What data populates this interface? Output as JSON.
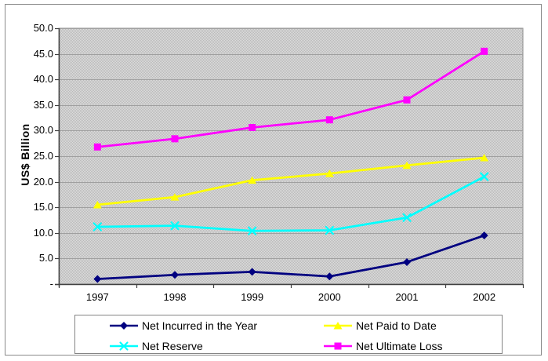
{
  "chart_data": {
    "type": "line",
    "categories": [
      "1997",
      "1998",
      "1999",
      "2000",
      "2001",
      "2002"
    ],
    "series": [
      {
        "name": "Net Incurred in the Year",
        "color": "#000080",
        "marker": "diamond",
        "values": [
          1.0,
          1.8,
          2.4,
          1.5,
          4.3,
          9.5
        ]
      },
      {
        "name": "Net Paid to Date",
        "color": "#ffff00",
        "marker": "triangle",
        "values": [
          15.5,
          17.0,
          20.3,
          21.6,
          23.2,
          24.7
        ]
      },
      {
        "name": "Net Reserve",
        "color": "#00ffff",
        "marker": "x",
        "values": [
          11.2,
          11.4,
          10.4,
          10.5,
          13.0,
          21.0
        ]
      },
      {
        "name": "Net Ultimate Loss",
        "color": "#ff00ff",
        "marker": "square",
        "values": [
          26.8,
          28.4,
          30.6,
          32.1,
          36.0,
          45.5
        ]
      }
    ],
    "xlabel": "",
    "ylabel": "US$ Billion",
    "ylim": [
      0,
      50
    ],
    "y_ticks": [
      {
        "value": 50,
        "label": "50.0"
      },
      {
        "value": 45,
        "label": "45.0"
      },
      {
        "value": 40,
        "label": "40.0"
      },
      {
        "value": 35,
        "label": "35.0"
      },
      {
        "value": 30,
        "label": "30.0"
      },
      {
        "value": 25,
        "label": "25.0"
      },
      {
        "value": 20,
        "label": "20.0"
      },
      {
        "value": 15,
        "label": "15.0"
      },
      {
        "value": 10,
        "label": "10.0"
      },
      {
        "value": 5,
        "label": "5.0"
      },
      {
        "value": 0,
        "label": "-"
      }
    ],
    "grid": true,
    "legend_position": "bottom",
    "colors": {
      "plot_bg_light": "#dedede",
      "plot_bg_dark": "#b9b9b9",
      "gridline": "#a0a0a0",
      "axis": "#404040",
      "plot_border": "#8c8c8c",
      "frame_border": "#8a8a8a",
      "legend_border": "#848484",
      "text": "#000000"
    }
  }
}
